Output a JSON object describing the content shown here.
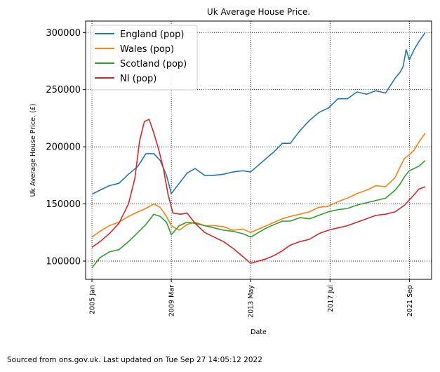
{
  "footer": "Sourced from ons.gov.uk. Last updated on Tue Sep 27 14:05:12 2022",
  "chart_data": {
    "type": "line",
    "title": "Uk Average House Price.",
    "xlabel": "Date",
    "ylabel": "Uk Average House Price. (£)",
    "x_ticks": [
      "2005 Jan",
      "2009 Mar",
      "2013 May",
      "2017 Jul",
      "2021 Sep"
    ],
    "y_ticks": [
      100000,
      150000,
      200000,
      250000,
      300000
    ],
    "xlim": [
      "2004-09",
      "2022-11"
    ],
    "ylim": [
      84000,
      310000
    ],
    "grid": true,
    "grid_style": "dotted",
    "legend_position": "top-left",
    "series": [
      {
        "name": "England (pop)",
        "color": "#1f77b4",
        "points": [
          [
            "2005-01",
            158500
          ],
          [
            "2005-06",
            162000
          ],
          [
            "2005-12",
            166000
          ],
          [
            "2006-06",
            168000
          ],
          [
            "2006-12",
            176000
          ],
          [
            "2007-06",
            183000
          ],
          [
            "2007-11",
            194000
          ],
          [
            "2008-04",
            194000
          ],
          [
            "2008-08",
            188000
          ],
          [
            "2008-12",
            175000
          ],
          [
            "2009-03",
            159000
          ],
          [
            "2009-08",
            168000
          ],
          [
            "2010-01",
            177000
          ],
          [
            "2010-06",
            181000
          ],
          [
            "2010-12",
            175000
          ],
          [
            "2011-06",
            175000
          ],
          [
            "2011-12",
            176000
          ],
          [
            "2012-06",
            178000
          ],
          [
            "2012-12",
            179000
          ],
          [
            "2013-05",
            178000
          ],
          [
            "2013-10",
            184000
          ],
          [
            "2014-03",
            190000
          ],
          [
            "2014-08",
            196000
          ],
          [
            "2015-01",
            203000
          ],
          [
            "2015-06",
            203000
          ],
          [
            "2015-12",
            214000
          ],
          [
            "2016-06",
            223000
          ],
          [
            "2016-12",
            230000
          ],
          [
            "2017-06",
            234000
          ],
          [
            "2017-12",
            242000
          ],
          [
            "2018-06",
            242000
          ],
          [
            "2018-12",
            248000
          ],
          [
            "2019-06",
            246000
          ],
          [
            "2019-12",
            249000
          ],
          [
            "2020-06",
            247000
          ],
          [
            "2020-12",
            260000
          ],
          [
            "2021-03",
            265000
          ],
          [
            "2021-05",
            270000
          ],
          [
            "2021-07",
            285000
          ],
          [
            "2021-09",
            276000
          ],
          [
            "2021-12",
            285000
          ],
          [
            "2022-03",
            292000
          ],
          [
            "2022-07",
            300000
          ]
        ]
      },
      {
        "name": "Wales (pop)",
        "color": "#ff7f0e",
        "points": [
          [
            "2005-01",
            121000
          ],
          [
            "2005-06",
            126000
          ],
          [
            "2005-12",
            131000
          ],
          [
            "2006-06",
            134000
          ],
          [
            "2006-12",
            139000
          ],
          [
            "2007-06",
            143000
          ],
          [
            "2007-11",
            146000
          ],
          [
            "2008-04",
            150000
          ],
          [
            "2008-08",
            147000
          ],
          [
            "2008-12",
            139000
          ],
          [
            "2009-03",
            131000
          ],
          [
            "2009-08",
            127000
          ],
          [
            "2010-01",
            132000
          ],
          [
            "2010-06",
            134000
          ],
          [
            "2010-12",
            131000
          ],
          [
            "2011-06",
            131000
          ],
          [
            "2011-12",
            130000
          ],
          [
            "2012-06",
            127000
          ],
          [
            "2012-12",
            128000
          ],
          [
            "2013-05",
            125000
          ],
          [
            "2013-10",
            128000
          ],
          [
            "2014-03",
            131000
          ],
          [
            "2014-08",
            134000
          ],
          [
            "2015-01",
            137000
          ],
          [
            "2015-06",
            139000
          ],
          [
            "2015-12",
            141000
          ],
          [
            "2016-06",
            143000
          ],
          [
            "2016-12",
            147000
          ],
          [
            "2017-06",
            148000
          ],
          [
            "2017-12",
            152000
          ],
          [
            "2018-06",
            155000
          ],
          [
            "2018-12",
            159000
          ],
          [
            "2019-06",
            162000
          ],
          [
            "2019-12",
            166000
          ],
          [
            "2020-06",
            165000
          ],
          [
            "2020-12",
            173000
          ],
          [
            "2021-03",
            182000
          ],
          [
            "2021-06",
            190000
          ],
          [
            "2021-09",
            193000
          ],
          [
            "2021-12",
            197000
          ],
          [
            "2022-03",
            204000
          ],
          [
            "2022-07",
            212000
          ]
        ]
      },
      {
        "name": "Scotland (pop)",
        "color": "#2ca02c",
        "points": [
          [
            "2005-01",
            94000
          ],
          [
            "2005-06",
            103000
          ],
          [
            "2005-12",
            108000
          ],
          [
            "2006-06",
            110000
          ],
          [
            "2006-12",
            117000
          ],
          [
            "2007-06",
            125000
          ],
          [
            "2007-11",
            132000
          ],
          [
            "2008-04",
            141000
          ],
          [
            "2008-08",
            139000
          ],
          [
            "2008-12",
            134000
          ],
          [
            "2009-03",
            123000
          ],
          [
            "2009-08",
            131000
          ],
          [
            "2010-01",
            134000
          ],
          [
            "2010-06",
            133000
          ],
          [
            "2010-12",
            131000
          ],
          [
            "2011-06",
            129000
          ],
          [
            "2011-12",
            127000
          ],
          [
            "2012-06",
            126000
          ],
          [
            "2012-12",
            124000
          ],
          [
            "2013-05",
            121000
          ],
          [
            "2013-10",
            125000
          ],
          [
            "2014-03",
            129000
          ],
          [
            "2014-08",
            132000
          ],
          [
            "2015-01",
            135000
          ],
          [
            "2015-06",
            135000
          ],
          [
            "2015-12",
            138000
          ],
          [
            "2016-06",
            137000
          ],
          [
            "2016-12",
            140000
          ],
          [
            "2017-06",
            143000
          ],
          [
            "2017-12",
            145000
          ],
          [
            "2018-06",
            146000
          ],
          [
            "2018-12",
            149000
          ],
          [
            "2019-06",
            151000
          ],
          [
            "2019-12",
            153000
          ],
          [
            "2020-06",
            155000
          ],
          [
            "2020-12",
            162000
          ],
          [
            "2021-03",
            167000
          ],
          [
            "2021-06",
            174000
          ],
          [
            "2021-09",
            179000
          ],
          [
            "2021-12",
            181000
          ],
          [
            "2022-03",
            183000
          ],
          [
            "2022-07",
            188000
          ]
        ]
      },
      {
        "name": "NI (pop)",
        "color": "#d62728",
        "points": [
          [
            "2005-01",
            112000
          ],
          [
            "2005-06",
            117000
          ],
          [
            "2005-12",
            124000
          ],
          [
            "2006-06",
            133000
          ],
          [
            "2006-12",
            150000
          ],
          [
            "2007-04",
            172000
          ],
          [
            "2007-07",
            205000
          ],
          [
            "2007-10",
            222000
          ],
          [
            "2008-01",
            224000
          ],
          [
            "2008-04",
            212000
          ],
          [
            "2008-07",
            198000
          ],
          [
            "2008-10",
            181000
          ],
          [
            "2009-01",
            158000
          ],
          [
            "2009-04",
            142000
          ],
          [
            "2009-09",
            141000
          ],
          [
            "2010-01",
            142000
          ],
          [
            "2010-06",
            133000
          ],
          [
            "2010-12",
            125000
          ],
          [
            "2011-06",
            121000
          ],
          [
            "2011-12",
            117000
          ],
          [
            "2012-06",
            111000
          ],
          [
            "2012-12",
            104000
          ],
          [
            "2013-05",
            98000
          ],
          [
            "2013-10",
            100000
          ],
          [
            "2014-03",
            102000
          ],
          [
            "2014-08",
            105000
          ],
          [
            "2015-01",
            109000
          ],
          [
            "2015-06",
            114000
          ],
          [
            "2015-12",
            117000
          ],
          [
            "2016-06",
            119000
          ],
          [
            "2016-12",
            124000
          ],
          [
            "2017-06",
            127000
          ],
          [
            "2017-12",
            129000
          ],
          [
            "2018-06",
            131000
          ],
          [
            "2018-12",
            134000
          ],
          [
            "2019-06",
            137000
          ],
          [
            "2019-12",
            140000
          ],
          [
            "2020-06",
            141000
          ],
          [
            "2020-12",
            143000
          ],
          [
            "2021-06",
            149000
          ],
          [
            "2021-12",
            158000
          ],
          [
            "2022-03",
            163000
          ],
          [
            "2022-07",
            165000
          ]
        ]
      }
    ]
  }
}
